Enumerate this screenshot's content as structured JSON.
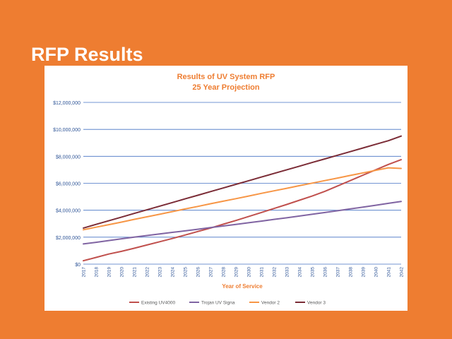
{
  "slide": {
    "title": "RFP Results"
  },
  "colors": {
    "background": "#ee7d31",
    "title_text": "#ffffff",
    "chart_title": "#ee7d31",
    "axis_text": "#2f5597",
    "grid": "#4472c4"
  },
  "chart_data": {
    "type": "line",
    "title": "Results of UV System RFP",
    "subtitle": "25 Year Projection",
    "xlabel": "Year of Service",
    "ylabel": "",
    "x": [
      "2017",
      "2018",
      "2019",
      "2020",
      "2021",
      "2022",
      "2023",
      "2024",
      "2025",
      "2026",
      "2027",
      "2028",
      "2029",
      "2030",
      "2031",
      "2032",
      "2033",
      "2034",
      "2035",
      "2036",
      "2037",
      "2038",
      "2039",
      "2040",
      "2041",
      "2042"
    ],
    "ylim": [
      0,
      12000000
    ],
    "yticks": [
      0,
      2000000,
      4000000,
      6000000,
      8000000,
      10000000,
      12000000
    ],
    "ytick_labels": [
      "$0",
      "$2,000,000",
      "$4,000,000",
      "$6,000,000",
      "$8,000,000",
      "$10,000,000",
      "$12,000,000"
    ],
    "grid": true,
    "legend_position": "bottom",
    "series": [
      {
        "name": "Existing UV4000",
        "color": "#c0504d",
        "values": [
          250000,
          500000,
          750000,
          950000,
          1180000,
          1420000,
          1660000,
          1900000,
          2160000,
          2420000,
          2680000,
          2960000,
          3240000,
          3530000,
          3830000,
          4130000,
          4430000,
          4740000,
          5050000,
          5400000,
          5800000,
          6200000,
          6600000,
          7000000,
          7400000,
          7750000
        ]
      },
      {
        "name": "Trojan UV Signa",
        "color": "#8064a2",
        "values": [
          1500000,
          1620000,
          1750000,
          1880000,
          2000000,
          2120000,
          2240000,
          2360000,
          2470000,
          2590000,
          2710000,
          2830000,
          2950000,
          3070000,
          3190000,
          3320000,
          3440000,
          3570000,
          3700000,
          3830000,
          3960000,
          4100000,
          4230000,
          4370000,
          4510000,
          4650000
        ]
      },
      {
        "name": "Vendor 2",
        "color": "#f79646",
        "values": [
          2550000,
          2740000,
          2930000,
          3120000,
          3320000,
          3510000,
          3700000,
          3900000,
          4090000,
          4280000,
          4480000,
          4670000,
          4860000,
          5050000,
          5250000,
          5440000,
          5630000,
          5820000,
          6010000,
          6200000,
          6390000,
          6580000,
          6770000,
          6960000,
          7150000,
          7100000
        ]
      },
      {
        "name": "Vendor 3",
        "color": "#7b2c36",
        "values": [
          2680000,
          2950000,
          3220000,
          3490000,
          3760000,
          4030000,
          4300000,
          4570000,
          4840000,
          5110000,
          5380000,
          5650000,
          5920000,
          6190000,
          6460000,
          6730000,
          7000000,
          7270000,
          7540000,
          7810000,
          8080000,
          8350000,
          8620000,
          8890000,
          9160000,
          9500000
        ]
      }
    ]
  }
}
